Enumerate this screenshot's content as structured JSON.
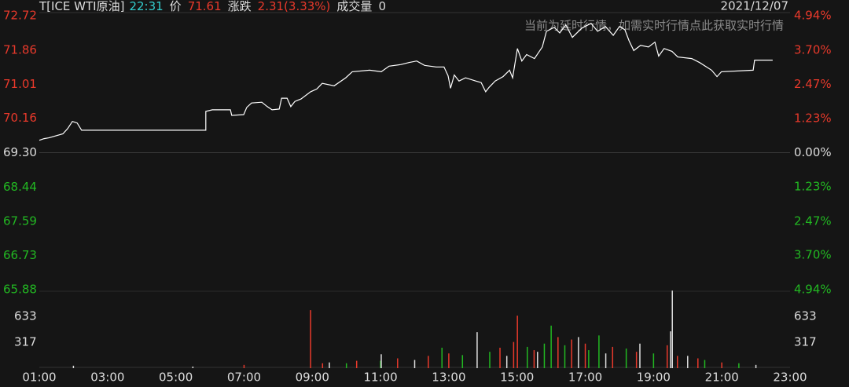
{
  "header": {
    "symbol": "T[ICE WTI原油]",
    "time": "22:31",
    "price_label": "价",
    "price": 71.61,
    "change_label": "涨跌",
    "change": "2.31(3.33%)",
    "volume_label": "成交量",
    "volume": 0,
    "date": "2021/12/07"
  },
  "notice": "当前为延时行情，如需实时行情点此获取实时行情",
  "colors": {
    "up": "#e8392b",
    "down": "#22b822",
    "flat": "#dddddd",
    "line": "#ffffff"
  },
  "chart_data": [
    {
      "type": "line",
      "xlim": [
        1,
        23
      ],
      "xticks": [
        {
          "value": 1,
          "label": "01:00"
        },
        {
          "value": 3,
          "label": "03:00"
        },
        {
          "value": 5,
          "label": "05:00"
        },
        {
          "value": 7,
          "label": "07:00"
        },
        {
          "value": 9,
          "label": "09:00"
        },
        {
          "value": 11,
          "label": "11:00"
        },
        {
          "value": 13,
          "label": "13:00"
        },
        {
          "value": 15,
          "label": "15:00"
        },
        {
          "value": 17,
          "label": "17:00"
        },
        {
          "value": 19,
          "label": "19:00"
        },
        {
          "value": 21,
          "label": "21:00"
        },
        {
          "value": 23,
          "label": "23:00"
        }
      ],
      "ylim": [
        65.88,
        72.72
      ],
      "yticks": [
        {
          "value": 72.72,
          "label": "72.72"
        },
        {
          "value": 71.86,
          "label": "71.86"
        },
        {
          "value": 71.01,
          "label": "71.01"
        },
        {
          "value": 70.16,
          "label": "70.16"
        },
        {
          "value": 69.3,
          "label": "69.30"
        },
        {
          "value": 68.44,
          "label": "68.44"
        },
        {
          "value": 67.59,
          "label": "67.59"
        },
        {
          "value": 66.73,
          "label": "66.73"
        },
        {
          "value": 65.88,
          "label": "65.88"
        }
      ],
      "y2lim": [
        -4.94,
        4.94
      ],
      "y2ticks": [
        {
          "value": 4.94,
          "label": "4.94%"
        },
        {
          "value": 3.7,
          "label": "3.70%"
        },
        {
          "value": 2.47,
          "label": "2.47%"
        },
        {
          "value": 1.23,
          "label": "1.23%"
        },
        {
          "value": 0,
          "label": "0.00%"
        },
        {
          "value": -1.23,
          "label": "1.23%"
        },
        {
          "value": -2.47,
          "label": "2.47%"
        },
        {
          "value": -3.7,
          "label": "3.70%"
        },
        {
          "value": -4.94,
          "label": "4.94%"
        }
      ],
      "x": [
        1.0,
        1.14,
        1.28,
        1.69,
        1.83,
        1.97,
        2.11,
        2.24,
        2.29,
        5.88,
        5.88,
        6.07,
        6.6,
        6.64,
        6.99,
        7.08,
        7.22,
        7.52,
        7.68,
        7.82,
        8.03,
        8.1,
        8.26,
        8.37,
        8.49,
        8.67,
        8.95,
        9.13,
        9.29,
        9.64,
        9.98,
        10.17,
        10.68,
        11.02,
        11.25,
        11.6,
        11.83,
        12.06,
        12.29,
        12.63,
        12.86,
        12.98,
        13.05,
        13.16,
        13.3,
        13.49,
        13.79,
        13.95,
        14.08,
        14.18,
        14.36,
        14.59,
        14.78,
        14.87,
        15.01,
        15.14,
        15.28,
        15.51,
        15.74,
        15.86,
        16.09,
        16.25,
        16.43,
        16.62,
        16.9,
        17.17,
        17.36,
        17.59,
        17.82,
        18.0,
        18.16,
        18.28,
        18.42,
        18.62,
        18.85,
        19.04,
        19.15,
        19.31,
        19.54,
        19.71,
        20.12,
        20.35,
        20.7,
        20.86,
        20.99,
        21.92,
        21.96,
        22.49
      ],
      "values": [
        69.61,
        69.65,
        69.67,
        69.77,
        69.9,
        70.08,
        70.04,
        69.86,
        69.86,
        69.86,
        70.33,
        70.37,
        70.37,
        70.23,
        70.25,
        70.43,
        70.54,
        70.56,
        70.45,
        70.37,
        70.39,
        70.66,
        70.66,
        70.45,
        70.58,
        70.64,
        70.82,
        70.89,
        71.03,
        70.97,
        71.17,
        71.32,
        71.36,
        71.32,
        71.46,
        71.5,
        71.55,
        71.59,
        71.48,
        71.44,
        71.44,
        71.22,
        70.91,
        71.24,
        71.09,
        71.17,
        71.09,
        71.05,
        70.82,
        70.93,
        71.09,
        71.2,
        71.36,
        71.17,
        71.9,
        71.59,
        71.75,
        71.65,
        71.94,
        72.33,
        72.43,
        72.29,
        72.49,
        72.18,
        72.41,
        72.53,
        72.33,
        72.45,
        72.23,
        72.45,
        72.37,
        72.1,
        71.85,
        71.98,
        71.94,
        72.06,
        71.71,
        71.9,
        71.83,
        71.69,
        71.65,
        71.55,
        71.36,
        71.2,
        71.32,
        71.36,
        71.61,
        71.61
      ]
    },
    {
      "type": "bar",
      "ylim": [
        0,
        950
      ],
      "yticks": [
        633,
        317
      ],
      "series": [
        {
          "name": "up",
          "color": "#e8392b",
          "x": [
            8.95,
            15.01,
            16.2,
            17.0,
            14.5,
            13.0,
            19.4,
            11.5,
            10.3,
            18.5,
            16.6,
            15.5,
            12.4,
            20.3,
            17.8,
            14.9,
            9.3,
            7.0,
            21.0,
            19.7
          ],
          "values": [
            709,
            642,
            380,
            300,
            250,
            180,
            280,
            120,
            90,
            200,
            350,
            220,
            150,
            120,
            260,
            320,
            60,
            40,
            70,
            150
          ]
        },
        {
          "name": "down",
          "color": "#22b822",
          "x": [
            16.0,
            12.8,
            15.8,
            13.4,
            17.4,
            16.4,
            14.2,
            18.2,
            19.0,
            11.0,
            10.0,
            20.5,
            15.3,
            17.1,
            21.5
          ],
          "values": [
            520,
            250,
            300,
            160,
            400,
            280,
            200,
            240,
            180,
            90,
            60,
            100,
            260,
            220,
            60
          ]
        },
        {
          "name": "flat",
          "color": "#dddddd",
          "x": [
            19.55,
            19.5,
            13.83,
            18.6,
            11.02,
            16.8,
            15.6,
            14.7,
            12.0,
            20.0,
            17.6,
            9.5,
            22.0,
            2.0,
            5.5
          ],
          "values": [
            948,
            450,
            440,
            300,
            170,
            380,
            200,
            150,
            100,
            150,
            180,
            70,
            40,
            30,
            20
          ]
        }
      ]
    }
  ]
}
